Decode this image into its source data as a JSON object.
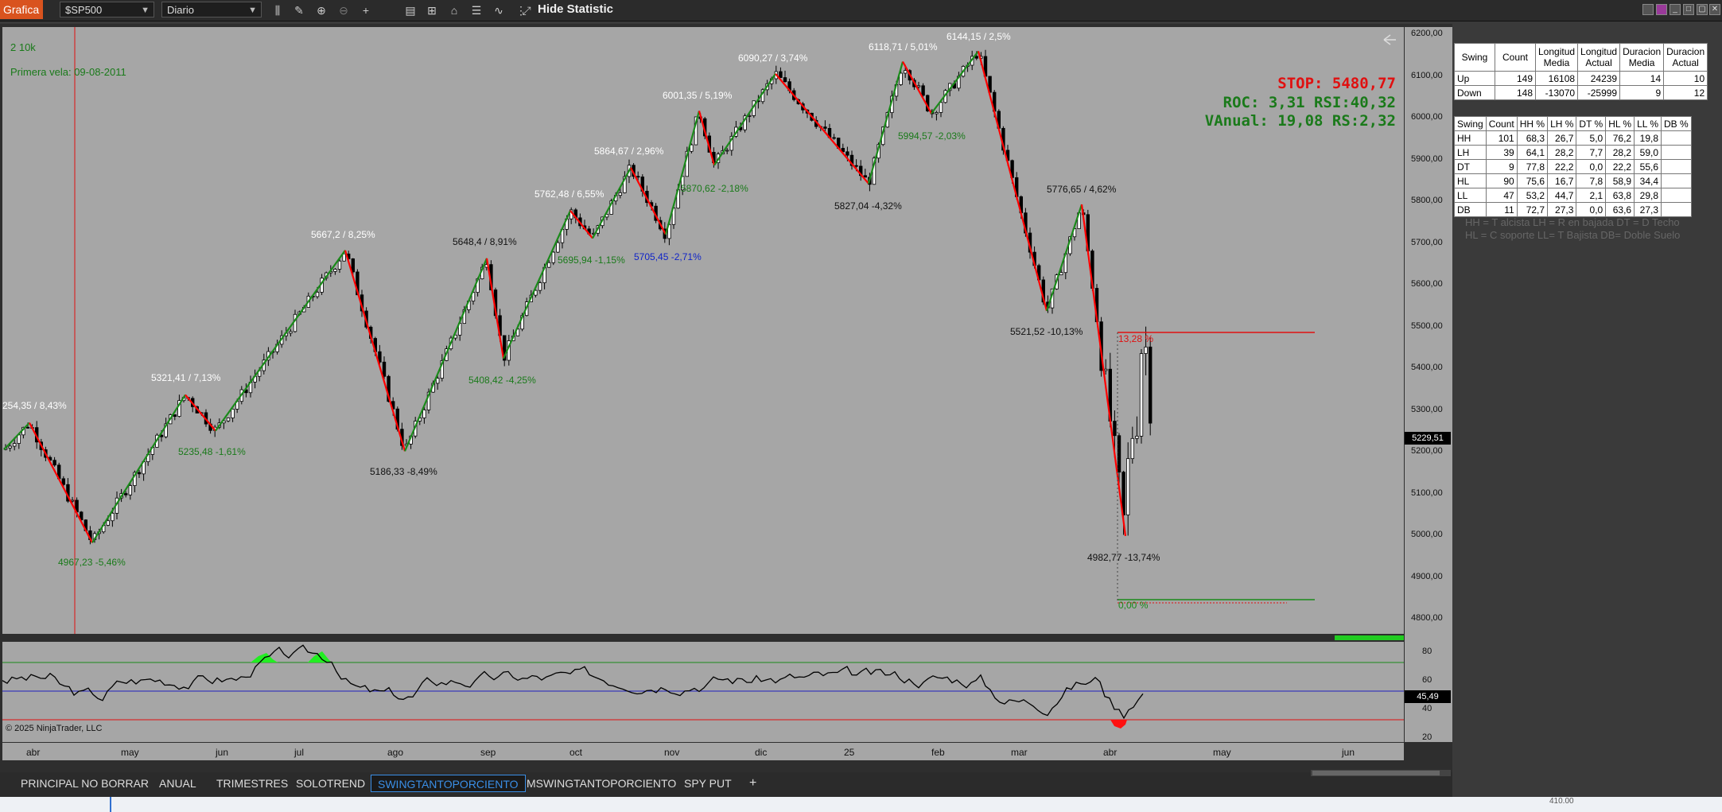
{
  "toolbar": {
    "tab_label": "Grafica",
    "instrument": "$SP500",
    "interval": "Diario",
    "hide_statistic": "Hide Statistic"
  },
  "chart": {
    "info_line1": "2 10k",
    "info_line2": "Primera vela: 09-08-2011",
    "stop_text": "STOP: 5480,77",
    "roc_text": "ROC: 3,31 RSI:40,32",
    "vanual_text": "VAnual: 19,08 RS:2,32",
    "copyright": "© 2025 NinjaTrader, LLC",
    "current_price": "5229,51",
    "rsi_value": "45,49",
    "pct_label_red": "13,28 %",
    "pct_label_green": "0,00 %",
    "colors": {
      "up_leg": "#1a8a1a",
      "down_leg": "#ff0000",
      "price_bg": "#a6a6a6",
      "accent": "#d9531e"
    },
    "price_ticks": [
      "6200,00",
      "6100,00",
      "6000,00",
      "5900,00",
      "5800,00",
      "5700,00",
      "5600,00",
      "5500,00",
      "5400,00",
      "5300,00",
      "5200,00",
      "5100,00",
      "5000,00",
      "4900,00",
      "4800,00"
    ],
    "rsi_ticks": [
      "80",
      "60",
      "40",
      "20"
    ],
    "time_ticks": [
      "abr",
      "may",
      "jun",
      "jul",
      "ago",
      "sep",
      "oct",
      "nov",
      "dic",
      "25",
      "feb",
      "mar",
      "abr",
      "may",
      "jun"
    ],
    "swing_labels": [
      {
        "text": "254,35 / 8,43%",
        "color": "white"
      },
      {
        "text": "4967,23 -5,46%",
        "color": "green"
      },
      {
        "text": "5321,41 / 7,13%",
        "color": "white"
      },
      {
        "text": "5235,48 -1,61%",
        "color": "green"
      },
      {
        "text": "5667,2 / 8,25%",
        "color": "white"
      },
      {
        "text": "5186,33 -8,49%",
        "color": "black"
      },
      {
        "text": "5648,4 / 8,91%",
        "color": "black"
      },
      {
        "text": "5408,42 -4,25%",
        "color": "green"
      },
      {
        "text": "5762,48 / 6,55%",
        "color": "white"
      },
      {
        "text": "5695,94 -1,15%",
        "color": "green"
      },
      {
        "text": "5864,67 / 2,96%",
        "color": "white"
      },
      {
        "text": "5705,45 -2,71%",
        "color": "blue"
      },
      {
        "text": "6001,35 / 5,19%",
        "color": "white"
      },
      {
        "text": "5870,62 -2,18%",
        "color": "green"
      },
      {
        "text": "6090,27 / 3,74%",
        "color": "white"
      },
      {
        "text": "5827,04 -4,32%",
        "color": "black"
      },
      {
        "text": "6118,71 / 5,01%",
        "color": "white"
      },
      {
        "text": "5994,57 -2,03%",
        "color": "green"
      },
      {
        "text": "6144,15 / 2,5%",
        "color": "white"
      },
      {
        "text": "5776,65 / 4,62%",
        "color": "black"
      },
      {
        "text": "5521,52 -10,13%",
        "color": "black"
      },
      {
        "text": "4982,77 -13,74%",
        "color": "black"
      }
    ]
  },
  "statistics": {
    "table1": {
      "headers": [
        "Swing",
        "Count",
        "Longitud Media",
        "Longitud Actual",
        "Duracion Media",
        "Duracion Actual"
      ],
      "rows": [
        [
          "Up",
          "149",
          "16108",
          "24239",
          "14",
          "10"
        ],
        [
          "Down",
          "148",
          "-13070",
          "-25999",
          "9",
          "12"
        ]
      ]
    },
    "table2": {
      "headers": [
        "Swing",
        "Count",
        "HH %",
        "LH %",
        "DT %",
        "HL %",
        "LL %",
        "DB %"
      ],
      "rows": [
        [
          "HH",
          "101",
          "68,3",
          "26,7",
          "5,0",
          "76,2",
          "19,8",
          ""
        ],
        [
          "LH",
          "39",
          "64,1",
          "28,2",
          "7,7",
          "28,2",
          "59,0",
          ""
        ],
        [
          "DT",
          "9",
          "77,8",
          "22,2",
          "0,0",
          "22,2",
          "55,6",
          ""
        ],
        [
          "HL",
          "90",
          "75,6",
          "16,7",
          "7,8",
          "58,9",
          "34,4",
          ""
        ],
        [
          "LL",
          "47",
          "53,2",
          "44,7",
          "2,1",
          "63,8",
          "29,8",
          ""
        ],
        [
          "DB",
          "11",
          "72,7",
          "27,3",
          "0,0",
          "63,6",
          "27,3",
          ""
        ]
      ]
    },
    "legend_line1": "HH = T alcista LH = R en bajada DT = D Techo",
    "legend_line2": "HL = C soporte LL= T Bajista DB= Doble Suelo"
  },
  "workspace_tabs": [
    "PRINCIPAL NO BORRAR",
    "ANUAL",
    "TRIMESTRES",
    "SOLOTREND",
    "SWINGTANTOPORCIENTO",
    "MSWINGTANTOPORCIENTO",
    "SPY PUT"
  ],
  "active_tab_index": 4,
  "add_tab_label": "+",
  "bottom_text": "410.00"
}
